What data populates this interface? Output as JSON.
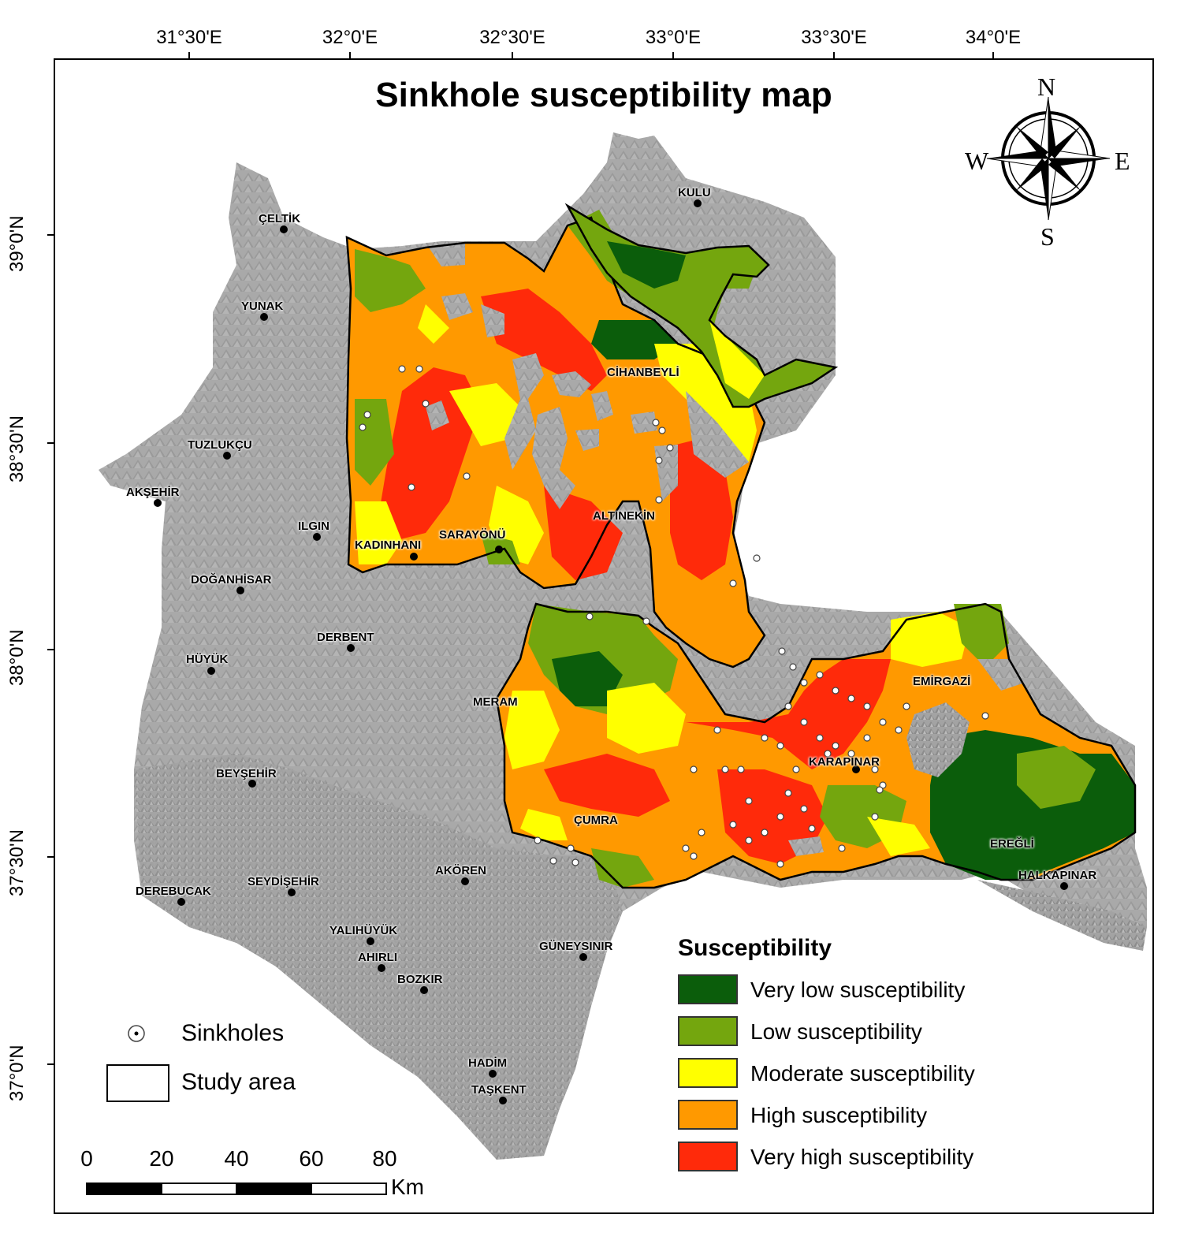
{
  "title": "Sinkhole susceptibility map",
  "longitude_labels": [
    "31°30'E",
    "32°0'E",
    "32°30'E",
    "33°0'E",
    "33°30'E",
    "34°0'E"
  ],
  "latitude_labels": [
    "39°0'N",
    "38°30'N",
    "38°0'N",
    "37°30'N",
    "37°0'N"
  ],
  "compass": {
    "n": "N",
    "s": "S",
    "e": "E",
    "w": "W"
  },
  "towns": [
    "KULU",
    "ÇELTİK",
    "YUNAK",
    "CİHANBEYLİ",
    "TUZLUKÇU",
    "AKŞEHİR",
    "ILGIN",
    "KADINHANI",
    "SARAYÖNÜ",
    "ALTINEKİN",
    "DOĞANHİSAR",
    "DERBENT",
    "HÜYÜK",
    "MERAM",
    "EMİRGAZİ",
    "KARAPINAR",
    "BEYŞEHİR",
    "ÇUMRA",
    "EREĞLİ",
    "AKÖREN",
    "SEYDİŞEHİR",
    "DEREBUCAK",
    "HALKAPINAR",
    "YALIHÜYÜK",
    "AHIRLI",
    "GÜNEYSINIR",
    "BOZKIR",
    "HADİM",
    "TAŞKENT"
  ],
  "legend": {
    "title": "Susceptibility",
    "classes": [
      {
        "label": "Very low susceptibility",
        "color": "#0b5d0b"
      },
      {
        "label": "Low susceptibility",
        "color": "#74a60e"
      },
      {
        "label": "Moderate susceptibility",
        "color": "#ffff00"
      },
      {
        "label": "High susceptibility",
        "color": "#ff9900"
      },
      {
        "label": "Very high susceptibility",
        "color": "#ff2a0a"
      }
    ],
    "sinkholes_label": "Sinkholes",
    "study_area_label": "Study area"
  },
  "scale_bar": {
    "ticks": [
      "0",
      "20",
      "40",
      "60",
      "80"
    ],
    "unit": "Km"
  }
}
